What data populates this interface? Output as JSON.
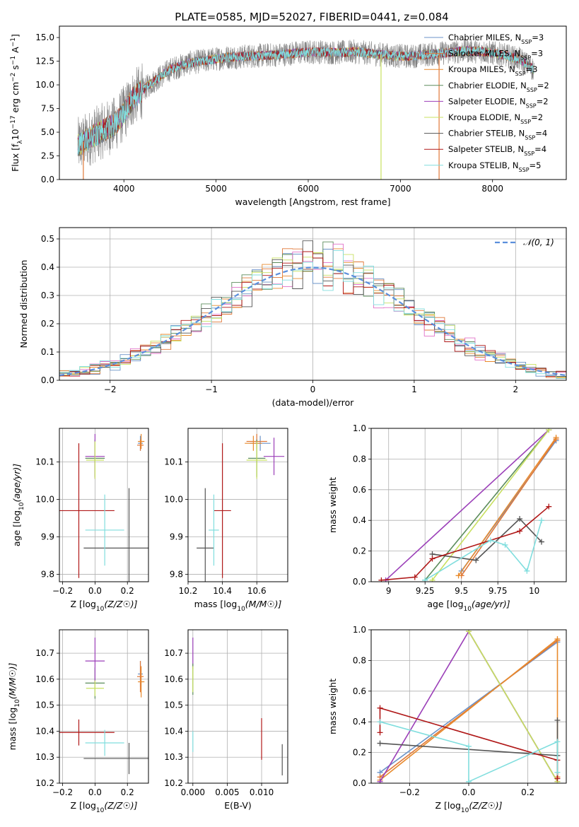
{
  "figure": {
    "title": "PLATE=0585, MJD=52027, FIBERID=0441, z=0.084"
  },
  "colors": {
    "Chabrier MILES": "#6b93c8",
    "Salpeter MILES": "#e07838",
    "Kroupa MILES": "#e88a2c",
    "Chabrier ELODIE": "#5b8c5b",
    "Salpeter ELODIE": "#9b3fb8",
    "Kroupa ELODIE": "#c8e060",
    "Chabrier STELIB": "#555555",
    "Salpeter STELIB": "#b01818",
    "Kroupa STELIB": "#80dede",
    "Gaussian": "#5b8fdc"
  },
  "chart_data": [
    {
      "id": "spectrum",
      "type": "line",
      "title": "PLATE=0585, MJD=52027, FIBERID=0441, z=0.084",
      "xlabel": "wavelength [Angstrom, rest frame]",
      "ylabel": "Flux [f_λ 10^-17 erg cm^-2 s^-1 A^-1]",
      "xlim": [
        3300,
        8800
      ],
      "ylim": [
        0,
        16.2
      ],
      "xticks": [
        4000,
        5000,
        6000,
        7000,
        8000
      ],
      "yticks": [
        0.0,
        2.5,
        5.0,
        7.5,
        10.0,
        12.5,
        15.0
      ],
      "legend_position": "right",
      "legend": [
        {
          "model": "Chabrier MILES",
          "label": "Chabrier MILES, N_SSP=3"
        },
        {
          "model": "Salpeter MILES",
          "label": "Salpeter MILES, N_SSP=3"
        },
        {
          "model": "Kroupa MILES",
          "label": "Kroupa MILES, N_SSP=3"
        },
        {
          "model": "Chabrier ELODIE",
          "label": "Chabrier ELODIE, N_SSP=2"
        },
        {
          "model": "Salpeter ELODIE",
          "label": "Salpeter ELODIE, N_SSP=2"
        },
        {
          "model": "Kroupa ELODIE",
          "label": "Kroupa ELODIE, N_SSP=2"
        },
        {
          "model": "Chabrier STELIB",
          "label": "Chabrier STELIB, N_SSP=4"
        },
        {
          "model": "Salpeter STELIB",
          "label": "Salpeter STELIB, N_SSP=4"
        },
        {
          "model": "Kroupa STELIB",
          "label": "Kroupa STELIB, N_SSP=5"
        }
      ],
      "continuum": {
        "wavelength": [
          3500,
          3700,
          3900,
          4000,
          4100,
          4300,
          4500,
          4700,
          4900,
          5100,
          5300,
          5500,
          5700,
          5900,
          6100,
          6300,
          6500,
          6700,
          6900,
          7100,
          7300,
          7500,
          7700,
          7900,
          8100,
          8300,
          8450
        ],
        "flux": [
          3.6,
          4.8,
          5.8,
          7.0,
          8.6,
          10.2,
          11.6,
          12.3,
          12.6,
          12.9,
          13.0,
          13.1,
          13.2,
          13.4,
          13.5,
          13.4,
          13.5,
          13.3,
          13.1,
          13.0,
          13.2,
          13.4,
          13.6,
          13.5,
          13.2,
          12.7,
          11.6
        ]
      },
      "sharp_drops": [
        {
          "model": "Salpeter MILES",
          "wavelength": 3560
        },
        {
          "model": "Kroupa ELODIE",
          "wavelength": 6790
        },
        {
          "model": "Salpeter MILES",
          "wavelength": 7420
        }
      ]
    },
    {
      "id": "residual_histogram",
      "type": "line",
      "xlabel": "(data-model)/error",
      "ylabel": "Normed distribution",
      "xlim": [
        -2.5,
        2.5
      ],
      "ylim": [
        0,
        0.54
      ],
      "xticks": [
        -2,
        -1,
        0,
        1,
        2
      ],
      "yticks": [
        0.0,
        0.1,
        0.2,
        0.3,
        0.4,
        0.5
      ],
      "legend_label": "𝒩(0, 1)",
      "legend_position": "top-right",
      "grid": true,
      "bin_width": 0.1,
      "bin_start": -2.5,
      "note": "step histograms of the nine model fits plus dashed unit gaussian"
    },
    {
      "id": "age_vs_Z",
      "type": "scatter",
      "xlabel": "Z [log10(Z/Z☉)]",
      "ylabel": "age [log10(age/yr)]",
      "xlim": [
        -0.22,
        0.33
      ],
      "ylim": [
        9.78,
        10.19
      ],
      "xticks": [
        -0.2,
        0.0,
        0.2
      ],
      "xticklabels": [
        "−0.2",
        "0.0",
        "0.2"
      ],
      "yticks": [
        9.8,
        9.9,
        10.0,
        10.1
      ],
      "grid": true,
      "points": [
        {
          "model": "Chabrier MILES",
          "x": 0.28,
          "xerr": 0.015,
          "y": 10.15,
          "yerr": 0.02
        },
        {
          "model": "Salpeter MILES",
          "x": 0.28,
          "xerr": 0.02,
          "y": 10.145,
          "yerr": 0.015
        },
        {
          "model": "Kroupa MILES",
          "x": 0.285,
          "xerr": 0.02,
          "y": 10.155,
          "yerr": 0.02
        },
        {
          "model": "Chabrier ELODIE",
          "x": 0.0,
          "xerr": 0.06,
          "y": 10.11,
          "yerr": 0.05
        },
        {
          "model": "Salpeter ELODIE",
          "x": 0.0,
          "xerr": 0.06,
          "y": 10.115,
          "yerr": 0.06
        },
        {
          "model": "Kroupa ELODIE",
          "x": 0.0,
          "xerr": 0.055,
          "y": 10.105,
          "yerr": 0.05
        },
        {
          "model": "Chabrier STELIB",
          "x": 0.21,
          "xerr": 0.28,
          "y": 9.87,
          "yerr": 0.16
        },
        {
          "model": "Salpeter STELIB",
          "x": -0.1,
          "xerr": 0.22,
          "y": 9.97,
          "yerr": 0.18
        },
        {
          "model": "Kroupa STELIB",
          "x": 0.06,
          "xerr": 0.12,
          "y": 9.918,
          "yerr": 0.095
        }
      ]
    },
    {
      "id": "age_vs_mass",
      "type": "scatter",
      "xlabel": "mass [log10(M/M☉)]",
      "xlim": [
        10.2,
        10.78
      ],
      "ylim": [
        9.78,
        10.19
      ],
      "xticks": [
        10.2,
        10.4,
        10.6
      ],
      "yticks": [
        9.8,
        9.9,
        10.0,
        10.1
      ],
      "grid": true,
      "points": [
        {
          "model": "Chabrier MILES",
          "x": 10.62,
          "xerr": 0.06,
          "y": 10.15,
          "yerr": 0.02
        },
        {
          "model": "Salpeter MILES",
          "x": 10.6,
          "xerr": 0.06,
          "y": 10.155,
          "yerr": 0.02
        },
        {
          "model": "Kroupa MILES",
          "x": 10.58,
          "xerr": 0.05,
          "y": 10.15,
          "yerr": 0.02
        },
        {
          "model": "Chabrier ELODIE",
          "x": 10.6,
          "xerr": 0.05,
          "y": 10.11,
          "yerr": 0.05
        },
        {
          "model": "Salpeter ELODIE",
          "x": 10.7,
          "xerr": 0.06,
          "y": 10.115,
          "yerr": 0.05
        },
        {
          "model": "Kroupa ELODIE",
          "x": 10.6,
          "xerr": 0.06,
          "y": 10.105,
          "yerr": 0.05
        },
        {
          "model": "Chabrier STELIB",
          "x": 10.3,
          "xerr": 0.05,
          "y": 9.87,
          "yerr": 0.16
        },
        {
          "model": "Salpeter STELIB",
          "x": 10.4,
          "xerr": 0.05,
          "y": 9.97,
          "yerr": 0.18
        },
        {
          "model": "Kroupa STELIB",
          "x": 10.35,
          "xerr": 0.03,
          "y": 9.918,
          "yerr": 0.095
        }
      ]
    },
    {
      "id": "weight_vs_age",
      "type": "line",
      "xlabel": "age [log10(age/yr)]",
      "ylabel": "mass weight",
      "xlim": [
        8.88,
        10.22
      ],
      "ylim": [
        0,
        1
      ],
      "xticks": [
        9.0,
        9.25,
        9.5,
        9.75,
        10.0
      ],
      "yticks": [
        0.0,
        0.2,
        0.4,
        0.6,
        0.8,
        1.0
      ],
      "grid": true,
      "series": [
        {
          "model": "Chabrier MILES",
          "x": [
            9.5,
            10.15
          ],
          "y": [
            0.07,
            0.92
          ]
        },
        {
          "model": "Salpeter MILES",
          "x": [
            9.5,
            10.15
          ],
          "y": [
            0.04,
            0.93
          ]
        },
        {
          "model": "Kroupa MILES",
          "x": [
            9.48,
            10.15
          ],
          "y": [
            0.04,
            0.94
          ]
        },
        {
          "model": "Chabrier ELODIE",
          "x": [
            9.25,
            10.1
          ],
          "y": [
            0.01,
            0.99
          ]
        },
        {
          "model": "Salpeter ELODIE",
          "x": [
            8.98,
            10.1
          ],
          "y": [
            0.01,
            0.99
          ]
        },
        {
          "model": "Kroupa ELODIE",
          "x": [
            9.3,
            10.1
          ],
          "y": [
            0.01,
            0.99
          ]
        },
        {
          "model": "Chabrier STELIB",
          "x": [
            9.3,
            9.6,
            9.9,
            10.05
          ],
          "y": [
            0.18,
            0.14,
            0.41,
            0.26
          ]
        },
        {
          "model": "Salpeter STELIB",
          "x": [
            8.95,
            9.18,
            9.3,
            9.9,
            10.1
          ],
          "y": [
            0.01,
            0.03,
            0.15,
            0.33,
            0.49
          ]
        },
        {
          "model": "Kroupa STELIB",
          "x": [
            9.25,
            9.7,
            9.8,
            9.95,
            10.05
          ],
          "y": [
            0.01,
            0.27,
            0.24,
            0.07,
            0.4
          ]
        }
      ]
    },
    {
      "id": "mass_vs_Z",
      "type": "scatter",
      "xlabel": "Z [log10(Z/Z☉)]",
      "ylabel": "mass [log10(M/M☉)]",
      "xlim": [
        -0.22,
        0.33
      ],
      "ylim": [
        10.2,
        10.79
      ],
      "xticks": [
        -0.2,
        0.0,
        0.2
      ],
      "xticklabels": [
        "−0.2",
        "0.0",
        "0.2"
      ],
      "yticks": [
        10.2,
        10.3,
        10.4,
        10.5,
        10.6,
        10.7
      ],
      "grid": true,
      "points": [
        {
          "model": "Chabrier MILES",
          "x": 0.28,
          "xerr": 0.015,
          "y": 10.62,
          "yerr": 0.05
        },
        {
          "model": "Salpeter MILES",
          "x": 0.28,
          "xerr": 0.02,
          "y": 10.61,
          "yerr": 0.06
        },
        {
          "model": "Kroupa MILES",
          "x": 0.285,
          "xerr": 0.02,
          "y": 10.59,
          "yerr": 0.06
        },
        {
          "model": "Chabrier ELODIE",
          "x": 0.0,
          "xerr": 0.06,
          "y": 10.585,
          "yerr": 0.06
        },
        {
          "model": "Salpeter ELODIE",
          "x": 0.0,
          "xerr": 0.06,
          "y": 10.67,
          "yerr": 0.09
        },
        {
          "model": "Kroupa ELODIE",
          "x": 0.0,
          "xerr": 0.055,
          "y": 10.565,
          "yerr": 0.03
        },
        {
          "model": "Chabrier STELIB",
          "x": 0.21,
          "xerr": 0.28,
          "y": 10.295,
          "yerr": 0.06
        },
        {
          "model": "Salpeter STELIB",
          "x": -0.1,
          "xerr": 0.22,
          "y": 10.395,
          "yerr": 0.05
        },
        {
          "model": "Kroupa STELIB",
          "x": 0.06,
          "xerr": 0.12,
          "y": 10.355,
          "yerr": 0.05
        }
      ]
    },
    {
      "id": "mass_vs_EBV",
      "type": "scatter",
      "xlabel": "E(B-V)",
      "xlim": [
        -0.0007,
        0.0138
      ],
      "ylim": [
        10.2,
        10.79
      ],
      "xticks": [
        0.0,
        0.005,
        0.01
      ],
      "xticklabels": [
        "0.000",
        "0.005",
        "0.010"
      ],
      "yticks": [
        10.2,
        10.3,
        10.4,
        10.5,
        10.6,
        10.7
      ],
      "grid": true,
      "points": [
        {
          "model": "Salpeter ELODIE",
          "x": 0.0,
          "y": 10.7,
          "yerr": 0.06
        },
        {
          "model": "Chabrier ELODIE",
          "x": 0.0,
          "y": 10.6,
          "yerr": 0.06
        },
        {
          "model": "Kroupa ELODIE",
          "x": 0.0,
          "y": 10.6,
          "yerr": 0.05
        },
        {
          "model": "Kroupa STELIB",
          "x": 0.0,
          "y": 10.36,
          "yerr": 0.04
        },
        {
          "model": "Salpeter STELIB",
          "x": 0.01,
          "y": 10.37,
          "yerr": 0.08
        },
        {
          "model": "Chabrier STELIB",
          "x": 0.013,
          "y": 10.29,
          "yerr": 0.06
        }
      ]
    },
    {
      "id": "weight_vs_Z",
      "type": "line",
      "xlabel": "Z [log10(Z/Z☉)]",
      "ylabel": "mass weight",
      "xlim": [
        -0.33,
        0.33
      ],
      "ylim": [
        0,
        1
      ],
      "xticks": [
        -0.2,
        0.0,
        0.2
      ],
      "xticklabels": [
        "−0.2",
        "0.0",
        "0.2"
      ],
      "yticks": [
        0.0,
        0.2,
        0.4,
        0.6,
        0.8,
        1.0
      ],
      "grid": true,
      "series": [
        {
          "model": "Chabrier MILES",
          "x": [
            -0.3,
            0.3
          ],
          "y": [
            0.07,
            0.92
          ]
        },
        {
          "model": "Salpeter MILES",
          "x": [
            -0.3,
            0.3
          ],
          "y": [
            0.04,
            0.93
          ]
        },
        {
          "model": "Kroupa MILES",
          "x": [
            -0.3,
            0.3,
            0.3
          ],
          "y": [
            0.02,
            0.94,
            0.04
          ]
        },
        {
          "model": "Chabrier ELODIE",
          "x": [
            0.0,
            0.3
          ],
          "y": [
            0.99,
            0.01
          ]
        },
        {
          "model": "Salpeter ELODIE",
          "x": [
            -0.3,
            0.0,
            0.3
          ],
          "y": [
            0.01,
            0.99,
            0.01
          ]
        },
        {
          "model": "Kroupa ELODIE",
          "x": [
            0.0,
            0.3
          ],
          "y": [
            0.99,
            0.01
          ]
        },
        {
          "model": "Chabrier STELIB",
          "x": [
            -0.3,
            0.3,
            0.3
          ],
          "y": [
            0.26,
            0.18,
            0.41
          ]
        },
        {
          "model": "Salpeter STELIB",
          "x": [
            -0.3,
            -0.3,
            0.3,
            0.3
          ],
          "y": [
            0.33,
            0.49,
            0.15,
            0.03
          ]
        },
        {
          "model": "Kroupa STELIB",
          "x": [
            -0.3,
            0.0,
            0.0,
            0.3,
            0.3
          ],
          "y": [
            0.4,
            0.24,
            0.01,
            0.27,
            0.07
          ]
        }
      ]
    }
  ]
}
